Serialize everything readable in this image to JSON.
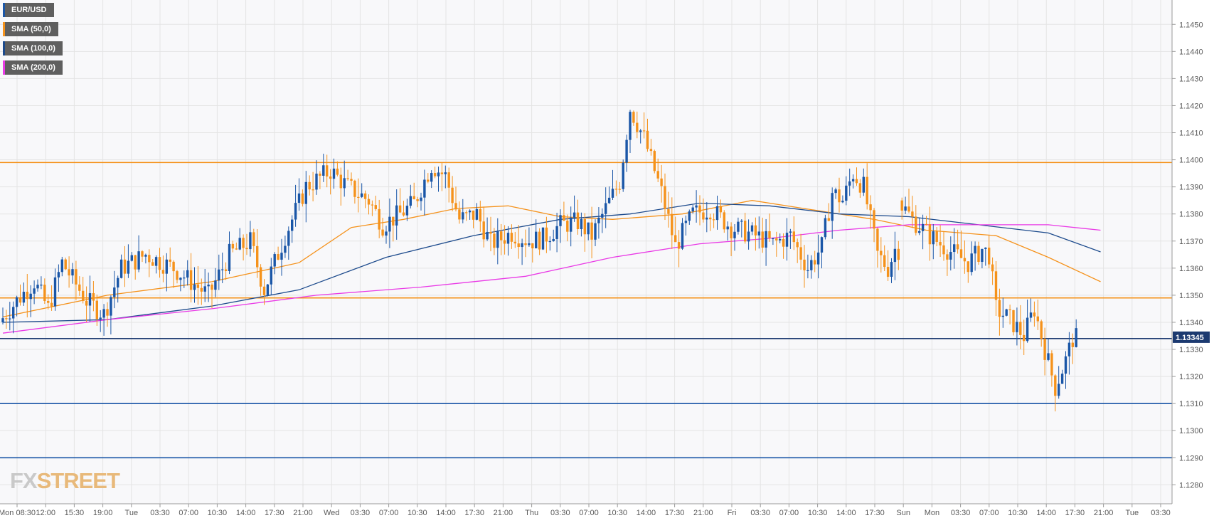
{
  "colors": {
    "bull": "#1a56a7",
    "bear": "#f5921b",
    "grid": "#e4e4e4",
    "plot_bg": "#f8f8fa",
    "price_tag": "#1c3a70"
  },
  "legend": [
    {
      "label": "EUR/USD",
      "color": "#1a56a7"
    },
    {
      "label": "SMA (50,0)",
      "color": "#f5921b"
    },
    {
      "label": "SMA (100,0)",
      "color": "#1c4a8c"
    },
    {
      "label": "SMA (200,0)",
      "color": "#e93ae6"
    }
  ],
  "logo": {
    "a": "FX",
    "b": "STREET"
  },
  "chart_data": {
    "type": "candlestick",
    "title": "",
    "xlabel": "",
    "ylabel": "",
    "ylim": [
      1.1273,
      1.1459
    ],
    "y_ticks": [
      "1.1450",
      "1.1440",
      "1.1430",
      "1.1420",
      "1.1410",
      "1.1400",
      "1.1390",
      "1.1380",
      "1.1370",
      "1.1360",
      "1.1350",
      "1.1340",
      "1.1330",
      "1.1320",
      "1.1310",
      "1.1300",
      "1.1290",
      "1.1280"
    ],
    "x_labels": [
      "Mon 08:30",
      "12:00",
      "15:30",
      "19:00",
      "Tue",
      "03:30",
      "07:00",
      "10:30",
      "14:00",
      "17:30",
      "21:00",
      "Wed",
      "03:30",
      "07:00",
      "10:30",
      "14:00",
      "17:30",
      "21:00",
      "Thu",
      "03:30",
      "07:00",
      "10:30",
      "14:00",
      "17:30",
      "21:00",
      "Fri",
      "03:30",
      "07:00",
      "10:30",
      "14:00",
      "17:30",
      "Sun",
      "Mon",
      "03:30",
      "07:00",
      "10:30",
      "14:00",
      "17:30",
      "21:00",
      "Tue",
      "03:30"
    ],
    "last_price": "1.13345",
    "grid": true,
    "legend_position": "top-left",
    "horizontal_levels": [
      {
        "value": 1.1399,
        "color": "#f5921b"
      },
      {
        "value": 1.1349,
        "color": "#f5921b"
      },
      {
        "value": 1.1334,
        "color": "#1c3a70"
      },
      {
        "value": 1.131,
        "color": "#1a56a7"
      },
      {
        "value": 1.129,
        "color": "#1a56a7"
      }
    ],
    "anchors": [
      [
        0,
        1.134
      ],
      [
        5,
        1.1348
      ],
      [
        10,
        1.1355
      ],
      [
        14,
        1.1345
      ],
      [
        18,
        1.1362
      ],
      [
        25,
        1.1348
      ],
      [
        30,
        1.1343
      ],
      [
        35,
        1.136
      ],
      [
        42,
        1.1365
      ],
      [
        50,
        1.136
      ],
      [
        60,
        1.135
      ],
      [
        66,
        1.1365
      ],
      [
        72,
        1.137
      ],
      [
        76,
        1.1352
      ],
      [
        82,
        1.1372
      ],
      [
        88,
        1.139
      ],
      [
        95,
        1.1396
      ],
      [
        100,
        1.139
      ],
      [
        106,
        1.1385
      ],
      [
        110,
        1.1376
      ],
      [
        115,
        1.138
      ],
      [
        119,
        1.1384
      ],
      [
        124,
        1.1398
      ],
      [
        128,
        1.1394
      ],
      [
        132,
        1.1378
      ],
      [
        137,
        1.138
      ],
      [
        141,
        1.1369
      ],
      [
        147,
        1.1373
      ],
      [
        152,
        1.137
      ],
      [
        156,
        1.1371
      ],
      [
        161,
        1.1376
      ],
      [
        166,
        1.1377
      ],
      [
        170,
        1.1372
      ],
      [
        174,
        1.1382
      ],
      [
        178,
        1.1392
      ],
      [
        181,
        1.1419
      ],
      [
        185,
        1.1408
      ],
      [
        190,
        1.1388
      ],
      [
        194,
        1.1368
      ],
      [
        199,
        1.138
      ],
      [
        204,
        1.1382
      ],
      [
        210,
        1.1375
      ],
      [
        217,
        1.1372
      ],
      [
        222,
        1.1369
      ],
      [
        227,
        1.1372
      ],
      [
        232,
        1.136
      ],
      [
        236,
        1.1368
      ],
      [
        239,
        1.1388
      ],
      [
        242,
        1.1385
      ],
      [
        245,
        1.1395
      ],
      [
        248,
        1.139
      ],
      [
        252,
        1.1365
      ],
      [
        255,
        1.136
      ],
      [
        257,
        1.1367
      ]
    ],
    "gap_after": 257,
    "anchors_after_gap": [
      [
        258,
        1.1385
      ],
      [
        262,
        1.1378
      ],
      [
        267,
        1.1372
      ],
      [
        272,
        1.1367
      ],
      [
        278,
        1.1362
      ],
      [
        282,
        1.1367
      ],
      [
        284,
        1.1365
      ],
      [
        286,
        1.1345
      ],
      [
        290,
        1.1341
      ],
      [
        294,
        1.1335
      ],
      [
        297,
        1.1345
      ],
      [
        300,
        1.133
      ],
      [
        303,
        1.1316
      ],
      [
        306,
        1.1326
      ],
      [
        308,
        1.1334
      ]
    ],
    "series": [
      {
        "name": "SMA (50,0)",
        "color": "#f5921b",
        "points": [
          [
            0,
            1.1342
          ],
          [
            30,
            1.135
          ],
          [
            60,
            1.1355
          ],
          [
            85,
            1.1362
          ],
          [
            100,
            1.1375
          ],
          [
            115,
            1.1378
          ],
          [
            130,
            1.1382
          ],
          [
            145,
            1.1383
          ],
          [
            160,
            1.1379
          ],
          [
            175,
            1.1378
          ],
          [
            195,
            1.138
          ],
          [
            215,
            1.1385
          ],
          [
            235,
            1.1381
          ],
          [
            250,
            1.1378
          ],
          [
            265,
            1.1374
          ],
          [
            285,
            1.1372
          ],
          [
            300,
            1.1364
          ],
          [
            315,
            1.1355
          ]
        ]
      },
      {
        "name": "SMA (100,0)",
        "color": "#1c4a8c",
        "points": [
          [
            0,
            1.134
          ],
          [
            30,
            1.1341
          ],
          [
            60,
            1.1346
          ],
          [
            85,
            1.1352
          ],
          [
            110,
            1.1364
          ],
          [
            135,
            1.1372
          ],
          [
            160,
            1.1378
          ],
          [
            180,
            1.138
          ],
          [
            200,
            1.1384
          ],
          [
            220,
            1.1383
          ],
          [
            240,
            1.138
          ],
          [
            260,
            1.1379
          ],
          [
            280,
            1.1376
          ],
          [
            300,
            1.1373
          ],
          [
            315,
            1.1366
          ]
        ]
      },
      {
        "name": "SMA (200,0)",
        "color": "#e93ae6",
        "points": [
          [
            0,
            1.1336
          ],
          [
            30,
            1.1341
          ],
          [
            60,
            1.1345
          ],
          [
            90,
            1.135
          ],
          [
            120,
            1.1353
          ],
          [
            150,
            1.1357
          ],
          [
            175,
            1.1364
          ],
          [
            200,
            1.1369
          ],
          [
            220,
            1.1371
          ],
          [
            240,
            1.1374
          ],
          [
            260,
            1.1376
          ],
          [
            280,
            1.1376
          ],
          [
            300,
            1.1376
          ],
          [
            315,
            1.1374
          ]
        ]
      }
    ]
  }
}
